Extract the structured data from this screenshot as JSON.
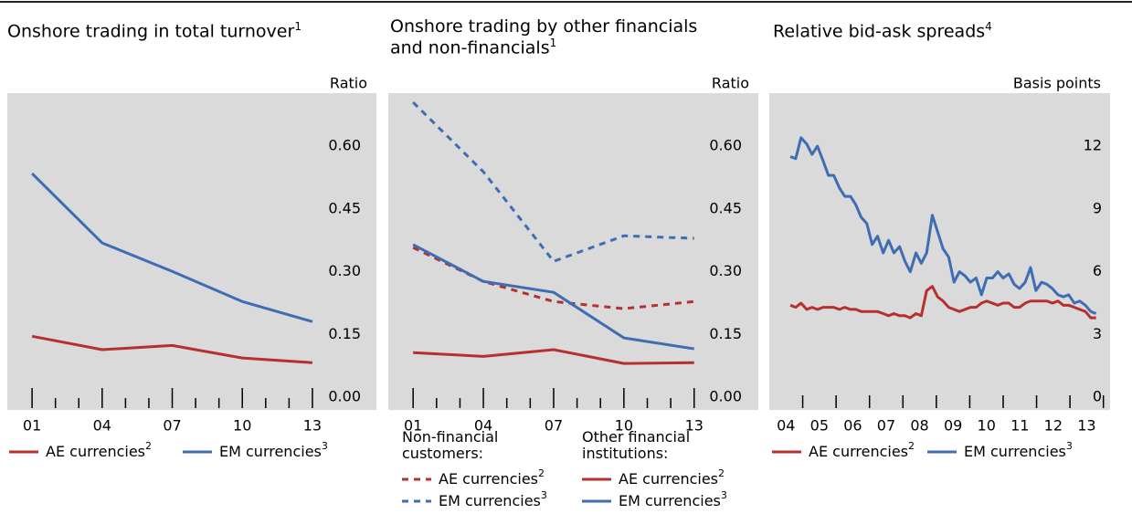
{
  "chart_data": [
    {
      "type": "line",
      "title": "Onshore trading in total turnover",
      "title_note": "1",
      "y_unit": "Ratio",
      "x": [
        2001,
        2004,
        2007,
        2010,
        2013
      ],
      "xlim": [
        1999.94,
        2015.74
      ],
      "xticks": [
        {
          "value": 2001,
          "label": "01"
        },
        {
          "value": 2004,
          "label": "04"
        },
        {
          "value": 2007,
          "label": "07"
        },
        {
          "value": 2010,
          "label": "10"
        },
        {
          "value": 2013,
          "label": "13"
        }
      ],
      "xminor": [
        2002,
        2003,
        2005,
        2006,
        2008,
        2009,
        2011,
        2012
      ],
      "ylim": [
        -0.03,
        0.727
      ],
      "yticks": [
        {
          "value": 0,
          "label": "0.00"
        },
        0.15,
        {
          "value": 0.3,
          "label": "0.30"
        },
        0.45,
        {
          "value": 0.6,
          "label": "0.60"
        }
      ],
      "series": [
        {
          "name": "AE currencies",
          "note": "2",
          "color": "#b5302f",
          "values": [
            0.146,
            0.114,
            0.124,
            0.094,
            0.083
          ]
        },
        {
          "name": "EM currencies",
          "note": "3",
          "color": "#3e6db3",
          "values": [
            0.535,
            0.369,
            0.301,
            0.229,
            0.181
          ]
        }
      ]
    },
    {
      "type": "line",
      "title": "Onshore trading by other financials and non-financials",
      "title_note": "1",
      "y_unit": "Ratio",
      "x": [
        2001,
        2004,
        2007,
        2010,
        2013
      ],
      "xlim": [
        1999.94,
        2015.74
      ],
      "xticks": [
        {
          "value": 2001,
          "label": "01"
        },
        {
          "value": 2004,
          "label": "04"
        },
        {
          "value": 2007,
          "label": "07"
        },
        {
          "value": 2010,
          "label": "10"
        },
        {
          "value": 2013,
          "label": "13"
        }
      ],
      "xminor": [
        2002,
        2003,
        2005,
        2006,
        2008,
        2009,
        2011,
        2012
      ],
      "ylim": [
        -0.03,
        0.727
      ],
      "yticks": [
        {
          "value": 0,
          "label": "0.00"
        },
        0.15,
        {
          "value": 0.3,
          "label": "0.30"
        },
        0.45,
        {
          "value": 0.6,
          "label": "0.60"
        }
      ],
      "legend_titles": [
        "Non-financial customers:",
        "Other financial institutions:"
      ],
      "series": [
        {
          "name": "AE currencies",
          "note": "2",
          "color": "#b5302f",
          "dashed": true,
          "values": [
            0.358,
            0.277,
            0.229,
            0.212,
            0.229
          ]
        },
        {
          "name": "EM currencies",
          "note": "3",
          "color": "#3e6db3",
          "dashed": true,
          "values": [
            0.705,
            0.539,
            0.325,
            0.386,
            0.38
          ]
        },
        {
          "name": "AE currencies",
          "note": "2",
          "color": "#b5302f",
          "values": [
            0.107,
            0.098,
            0.114,
            0.081,
            0.083
          ]
        },
        {
          "name": "EM currencies",
          "note": "3",
          "color": "#3e6db3",
          "values": [
            0.365,
            0.277,
            0.251,
            0.142,
            0.116
          ]
        }
      ]
    },
    {
      "type": "line",
      "title": "Relative bid-ask spreads",
      "title_note": "4",
      "y_unit": "Basis points",
      "x": [
        2004.63,
        2004.79,
        2004.95,
        2005.12,
        2005.28,
        2005.44,
        2005.61,
        2005.77,
        2005.93,
        2006.1,
        2006.26,
        2006.43,
        2006.59,
        2006.75,
        2006.92,
        2007.08,
        2007.24,
        2007.41,
        2007.57,
        2007.73,
        2007.9,
        2008.06,
        2008.22,
        2008.39,
        2008.55,
        2008.71,
        2008.88,
        2009.04,
        2009.2,
        2009.37,
        2009.53,
        2009.69,
        2009.86,
        2010.02,
        2010.19,
        2010.35,
        2010.51,
        2010.68,
        2010.84,
        2011.0,
        2011.17,
        2011.33,
        2011.49,
        2011.66,
        2011.82,
        2011.98,
        2012.15,
        2012.31,
        2012.47,
        2012.64,
        2012.8,
        2012.96,
        2013.13,
        2013.29,
        2013.46,
        2013.62,
        2013.78
      ],
      "xlim": [
        2004,
        2014.2
      ],
      "xticks": [
        {
          "value": 2004.5,
          "label": "04"
        },
        {
          "value": 2005.5,
          "label": "05"
        },
        {
          "value": 2006.5,
          "label": "06"
        },
        {
          "value": 2007.5,
          "label": "07"
        },
        {
          "value": 2008.5,
          "label": "08"
        },
        {
          "value": 2009.5,
          "label": "09"
        },
        {
          "value": 2010.5,
          "label": "10"
        },
        {
          "value": 2011.5,
          "label": "11"
        },
        {
          "value": 2012.5,
          "label": "12"
        },
        {
          "value": 2013.5,
          "label": "13"
        }
      ],
      "xtick_marks": [
        2005,
        2006,
        2007,
        2008,
        2009,
        2010,
        2011,
        2012,
        2013,
        2014
      ],
      "ylim": [
        -0.6,
        14.53
      ],
      "yticks": [
        0,
        3,
        6,
        9,
        12
      ],
      "series": [
        {
          "name": "AE currencies",
          "note": "2",
          "color": "#b5302f",
          "values": [
            4.4,
            4.3,
            4.5,
            4.2,
            4.3,
            4.2,
            4.3,
            4.3,
            4.3,
            4.2,
            4.3,
            4.2,
            4.2,
            4.1,
            4.1,
            4.1,
            4.1,
            4.0,
            3.9,
            4.0,
            3.9,
            3.9,
            3.8,
            4.0,
            3.9,
            5.1,
            5.3,
            4.8,
            4.6,
            4.3,
            4.2,
            4.1,
            4.2,
            4.3,
            4.3,
            4.5,
            4.6,
            4.5,
            4.4,
            4.5,
            4.5,
            4.3,
            4.3,
            4.5,
            4.6,
            4.6,
            4.6,
            4.6,
            4.5,
            4.6,
            4.4,
            4.4,
            4.3,
            4.2,
            4.1,
            3.8,
            3.8
          ]
        },
        {
          "name": "EM currencies",
          "note": "3",
          "color": "#3e6db3",
          "values": [
            11.5,
            11.4,
            12.4,
            12.1,
            11.6,
            12.0,
            11.3,
            10.6,
            10.6,
            10.0,
            9.6,
            9.6,
            9.2,
            8.6,
            8.3,
            7.3,
            7.7,
            6.9,
            7.5,
            6.9,
            7.2,
            6.5,
            6.0,
            6.9,
            6.4,
            6.9,
            8.7,
            7.9,
            7.1,
            6.7,
            5.5,
            6.0,
            5.8,
            5.5,
            5.7,
            4.9,
            5.7,
            5.7,
            6.0,
            5.7,
            5.9,
            5.4,
            5.2,
            5.5,
            6.2,
            5.1,
            5.5,
            5.4,
            5.2,
            4.9,
            4.8,
            4.9,
            4.5,
            4.6,
            4.4,
            4.1,
            4.0
          ]
        }
      ]
    }
  ]
}
